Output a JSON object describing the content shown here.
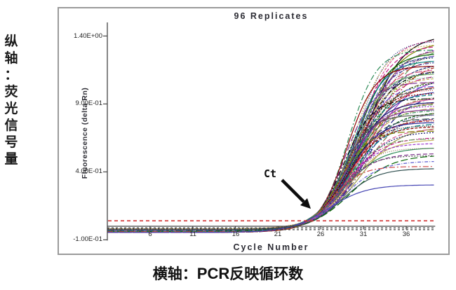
{
  "page": {
    "left_axis_caption": "纵轴：荧光信号量",
    "left_axis_caption_chars": [
      "纵",
      "轴",
      "：",
      "荧",
      "光",
      "信",
      "号",
      "量"
    ],
    "bottom_caption": {
      "prefix": "横轴：",
      "bold": "PCR",
      "suffix": "反映循环数"
    }
  },
  "chart_data": {
    "type": "line",
    "title": "96 Replicates",
    "xlabel": "Cycle Number",
    "ylabel": "Fluorescence (delta Rn)",
    "annotation": {
      "text": "Ct",
      "points_to_cycle": 24.6
    },
    "xlim": [
      1,
      39.4
    ],
    "ylim": [
      -0.1,
      1.5
    ],
    "grid": false,
    "legend": "none",
    "x_ticks": [
      6,
      11,
      16,
      21,
      26,
      31,
      36
    ],
    "y_ticks": [
      {
        "label": "1.40E+00",
        "value": 1.4
      },
      {
        "label": "9.00E-01",
        "value": 0.9
      },
      {
        "label": "4.00E-01",
        "value": 0.4
      },
      {
        "label": "-1.00E-01",
        "value": -0.1
      }
    ],
    "threshold_line": {
      "value": 0.04,
      "color": "#cc2222",
      "style": "dashed"
    },
    "description": "96 replicate qPCR amplification curves: flat baseline near 0 until ~cycle 22, threshold (Ct) crossing near cycle 24-25, sigmoidal rise fanning out to plateaus between ~0.35 and ~1.38 by cycle 39; one low outlier curve plateaus near 0.33 and a couple of traces stay flat at baseline.",
    "replicates": {
      "count": 96,
      "ct_cycle_mean": 24.6,
      "baseline_pattern": [
        -0.02,
        -0.03,
        -0.04,
        -0.025,
        -0.045,
        -0.035
      ],
      "ct_pattern": [
        24.4,
        24.7,
        24.2,
        24.9,
        24.5,
        25.1,
        24.3,
        24.8,
        24.6,
        25.0,
        24.35,
        24.75
      ],
      "k_pattern": [
        0.46,
        0.52,
        0.44,
        0.57,
        0.49,
        0.42,
        0.55,
        0.47,
        0.6,
        0.5,
        0.45,
        0.53
      ],
      "palette": [
        "#000000",
        "#1f1f8f",
        "#3a3aa0",
        "#5a5ad0",
        "#7b2d8b",
        "#9932cc",
        "#c71585",
        "#d6568f",
        "#8b0000",
        "#b22222",
        "#cc4444",
        "#006400",
        "#2e8b57",
        "#66a361",
        "#808000",
        "#9b9b4a",
        "#008080",
        "#2f4f4f",
        "#555555",
        "#8b7355",
        "#c8b560",
        "#191970"
      ],
      "dash_patterns": [
        "",
        "",
        "6 3",
        "2 2",
        "8 3 2 3",
        "4 2",
        "1 2",
        "10 4",
        "5 2 1 2"
      ],
      "outlier": {
        "plateau": 0.35,
        "color": "#4646b4",
        "dash": ""
      },
      "plateaus": [
        1.43,
        1.41,
        1.4,
        1.39,
        1.38,
        1.37,
        1.36,
        1.35,
        1.34,
        1.33,
        1.32,
        1.31,
        1.3,
        1.29,
        1.28,
        1.27,
        1.26,
        1.25,
        1.24,
        1.23,
        1.22,
        1.21,
        1.2,
        1.19,
        1.18,
        1.17,
        1.16,
        1.15,
        1.14,
        1.13,
        1.12,
        1.11,
        1.1,
        1.09,
        1.08,
        1.07,
        1.06,
        1.05,
        1.04,
        1.03,
        1.02,
        1.01,
        1.0,
        0.99,
        0.98,
        0.97,
        0.96,
        0.95,
        0.94,
        0.93,
        0.92,
        0.91,
        0.9,
        0.89,
        0.88,
        0.87,
        0.86,
        0.85,
        0.84,
        0.83,
        0.82,
        0.81,
        0.8,
        0.79,
        0.78,
        0.77,
        0.76,
        0.75,
        0.74,
        0.72,
        0.7,
        0.68,
        0.66,
        0.64,
        0.62,
        0.6,
        0.58,
        0.56,
        0.54,
        0.51,
        0.48,
        0.45,
        0.35,
        0.02,
        0.015
      ]
    }
  }
}
